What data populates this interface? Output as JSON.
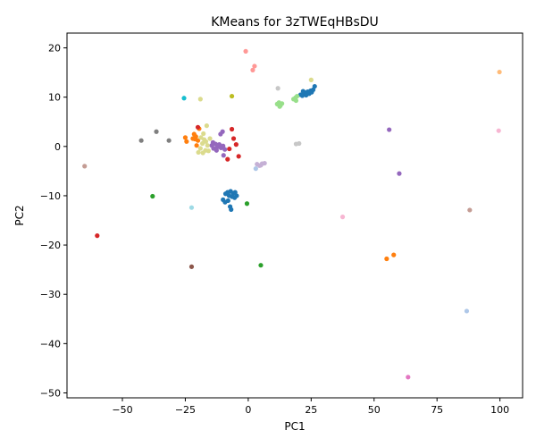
{
  "chart_data": {
    "type": "scatter",
    "title": "KMeans for 3zTWEqHBsDU",
    "xlabel": "PC1",
    "ylabel": "PC2",
    "xlim": [
      -72,
      109
    ],
    "ylim": [
      -51,
      23
    ],
    "xticks": [
      -50,
      -25,
      0,
      25,
      50,
      75,
      100
    ],
    "yticks": [
      -50,
      -40,
      -30,
      -20,
      -10,
      0,
      10,
      20
    ],
    "grid": false,
    "legend": "none",
    "points": [
      {
        "x": 21.5,
        "y": 10.3,
        "color": "#1f77b4"
      },
      {
        "x": 22.0,
        "y": 10.6,
        "color": "#1f77b4"
      },
      {
        "x": 22.6,
        "y": 10.9,
        "color": "#1f77b4"
      },
      {
        "x": 23.0,
        "y": 10.4,
        "color": "#1f77b4"
      },
      {
        "x": 23.6,
        "y": 11.1,
        "color": "#1f77b4"
      },
      {
        "x": 24.2,
        "y": 10.7,
        "color": "#1f77b4"
      },
      {
        "x": 24.8,
        "y": 11.3,
        "color": "#1f77b4"
      },
      {
        "x": 25.2,
        "y": 11.0,
        "color": "#1f77b4"
      },
      {
        "x": 25.8,
        "y": 11.5,
        "color": "#1f77b4"
      },
      {
        "x": 26.4,
        "y": 12.2,
        "color": "#1f77b4"
      },
      {
        "x": 20.8,
        "y": 10.5,
        "color": "#1f77b4"
      },
      {
        "x": 21.8,
        "y": 11.2,
        "color": "#1f77b4"
      },
      {
        "x": -10.0,
        "y": -10.8,
        "color": "#1f77b4"
      },
      {
        "x": -9.2,
        "y": -11.3,
        "color": "#1f77b4"
      },
      {
        "x": -8.0,
        "y": -11.0,
        "color": "#1f77b4"
      },
      {
        "x": -7.2,
        "y": -12.2,
        "color": "#1f77b4"
      },
      {
        "x": -6.8,
        "y": -12.8,
        "color": "#1f77b4"
      },
      {
        "x": -9.0,
        "y": -9.6,
        "color": "#1f77b4"
      },
      {
        "x": -8.2,
        "y": -9.3,
        "color": "#1f77b4"
      },
      {
        "x": -7.0,
        "y": -9.1,
        "color": "#1f77b4"
      },
      {
        "x": -6.0,
        "y": -9.5,
        "color": "#1f77b4"
      },
      {
        "x": -5.2,
        "y": -9.3,
        "color": "#1f77b4"
      },
      {
        "x": -4.6,
        "y": -10.0,
        "color": "#1f77b4"
      },
      {
        "x": -5.4,
        "y": -10.4,
        "color": "#1f77b4"
      },
      {
        "x": -6.4,
        "y": -10.2,
        "color": "#1f77b4"
      },
      {
        "x": -7.6,
        "y": -10.0,
        "color": "#1f77b4"
      },
      {
        "x": 86.8,
        "y": -33.4,
        "color": "#aec7e8"
      },
      {
        "x": 3.0,
        "y": -4.5,
        "color": "#aec7e8"
      },
      {
        "x": -21.5,
        "y": 2.5,
        "color": "#ff7f0e"
      },
      {
        "x": -20.8,
        "y": 2.0,
        "color": "#ff7f0e"
      },
      {
        "x": -21.2,
        "y": 1.5,
        "color": "#ff7f0e"
      },
      {
        "x": -20.0,
        "y": 1.2,
        "color": "#ff7f0e"
      },
      {
        "x": -19.5,
        "y": 3.6,
        "color": "#ff7f0e"
      },
      {
        "x": -20.5,
        "y": 0.2,
        "color": "#ff7f0e"
      },
      {
        "x": -25.0,
        "y": 1.8,
        "color": "#ff7f0e"
      },
      {
        "x": -24.5,
        "y": 1.0,
        "color": "#ff7f0e"
      },
      {
        "x": -22.0,
        "y": 1.6,
        "color": "#ff7f0e"
      },
      {
        "x": 55.0,
        "y": -22.8,
        "color": "#ff7f0e"
      },
      {
        "x": 57.8,
        "y": -22.0,
        "color": "#ff7f0e"
      },
      {
        "x": 99.8,
        "y": 15.1,
        "color": "#ffbb78"
      },
      {
        "x": -38.0,
        "y": -10.1,
        "color": "#2ca02c"
      },
      {
        "x": -0.5,
        "y": -11.6,
        "color": "#2ca02c"
      },
      {
        "x": 5.0,
        "y": -24.1,
        "color": "#2ca02c"
      },
      {
        "x": 11.5,
        "y": 8.6,
        "color": "#98df8a"
      },
      {
        "x": 12.2,
        "y": 8.9,
        "color": "#98df8a"
      },
      {
        "x": 12.8,
        "y": 8.3,
        "color": "#98df8a"
      },
      {
        "x": 13.4,
        "y": 8.7,
        "color": "#98df8a"
      },
      {
        "x": 12.5,
        "y": 8.1,
        "color": "#98df8a"
      },
      {
        "x": 18.0,
        "y": 9.6,
        "color": "#98df8a"
      },
      {
        "x": 18.8,
        "y": 9.9,
        "color": "#98df8a"
      },
      {
        "x": 19.4,
        "y": 10.2,
        "color": "#98df8a"
      },
      {
        "x": 19.0,
        "y": 9.3,
        "color": "#98df8a"
      },
      {
        "x": -60.0,
        "y": -18.1,
        "color": "#d62728"
      },
      {
        "x": -6.5,
        "y": 3.5,
        "color": "#d62728"
      },
      {
        "x": -5.8,
        "y": 1.6,
        "color": "#d62728"
      },
      {
        "x": -4.8,
        "y": 0.4,
        "color": "#d62728"
      },
      {
        "x": -7.5,
        "y": -0.5,
        "color": "#d62728"
      },
      {
        "x": -8.2,
        "y": -2.6,
        "color": "#d62728"
      },
      {
        "x": -3.8,
        "y": -2.0,
        "color": "#d62728"
      },
      {
        "x": -20.0,
        "y": 3.9,
        "color": "#d62728"
      },
      {
        "x": -1.0,
        "y": 19.3,
        "color": "#ff9896"
      },
      {
        "x": 2.5,
        "y": 16.3,
        "color": "#ff9896"
      },
      {
        "x": 1.8,
        "y": 15.5,
        "color": "#ff9896"
      },
      {
        "x": 56.0,
        "y": 3.4,
        "color": "#9467bd"
      },
      {
        "x": 60.0,
        "y": -5.5,
        "color": "#9467bd"
      },
      {
        "x": -11.0,
        "y": 2.5,
        "color": "#9467bd"
      },
      {
        "x": -10.2,
        "y": 3.0,
        "color": "#9467bd"
      },
      {
        "x": -14.5,
        "y": 0.2,
        "color": "#9467bd"
      },
      {
        "x": -13.8,
        "y": -0.4,
        "color": "#9467bd"
      },
      {
        "x": -13.0,
        "y": 0.5,
        "color": "#9467bd"
      },
      {
        "x": -12.2,
        "y": -0.1,
        "color": "#9467bd"
      },
      {
        "x": -11.5,
        "y": 0.4,
        "color": "#9467bd"
      },
      {
        "x": -10.8,
        "y": -0.3,
        "color": "#9467bd"
      },
      {
        "x": -10.0,
        "y": 0.1,
        "color": "#9467bd"
      },
      {
        "x": -9.3,
        "y": -0.6,
        "color": "#9467bd"
      },
      {
        "x": -12.6,
        "y": -0.8,
        "color": "#9467bd"
      },
      {
        "x": -9.8,
        "y": -1.8,
        "color": "#9467bd"
      },
      {
        "x": -14.0,
        "y": 0.8,
        "color": "#9467bd"
      },
      {
        "x": 3.5,
        "y": -3.6,
        "color": "#c5b0d5"
      },
      {
        "x": 4.5,
        "y": -3.9,
        "color": "#c5b0d5"
      },
      {
        "x": 5.5,
        "y": -3.5,
        "color": "#c5b0d5"
      },
      {
        "x": 6.5,
        "y": -3.4,
        "color": "#c5b0d5"
      },
      {
        "x": 5.0,
        "y": -3.8,
        "color": "#c5b0d5"
      },
      {
        "x": -22.5,
        "y": -24.4,
        "color": "#8c564b"
      },
      {
        "x": -65.0,
        "y": -4.0,
        "color": "#c49c94"
      },
      {
        "x": 88.0,
        "y": -12.9,
        "color": "#c49c94"
      },
      {
        "x": 63.5,
        "y": -46.8,
        "color": "#e377c2"
      },
      {
        "x": 37.5,
        "y": -14.3,
        "color": "#f7b6d2"
      },
      {
        "x": 99.5,
        "y": 3.2,
        "color": "#f7b6d2"
      },
      {
        "x": -42.5,
        "y": 1.2,
        "color": "#7f7f7f"
      },
      {
        "x": -36.5,
        "y": 3.0,
        "color": "#7f7f7f"
      },
      {
        "x": -31.5,
        "y": 1.2,
        "color": "#7f7f7f"
      },
      {
        "x": 11.8,
        "y": 11.8,
        "color": "#c7c7c7"
      },
      {
        "x": 19.0,
        "y": 0.5,
        "color": "#c7c7c7"
      },
      {
        "x": 20.2,
        "y": 0.6,
        "color": "#c7c7c7"
      },
      {
        "x": -6.5,
        "y": 10.2,
        "color": "#bcbd22"
      },
      {
        "x": -19.0,
        "y": 9.6,
        "color": "#dbdb8d"
      },
      {
        "x": 25.0,
        "y": 13.5,
        "color": "#dbdb8d"
      },
      {
        "x": -16.5,
        "y": 4.2,
        "color": "#dbdb8d"
      },
      {
        "x": -19.8,
        "y": -1.2,
        "color": "#dbdb8d"
      },
      {
        "x": -19.0,
        "y": -0.4,
        "color": "#dbdb8d"
      },
      {
        "x": -18.2,
        "y": 0.6,
        "color": "#dbdb8d"
      },
      {
        "x": -17.5,
        "y": 1.4,
        "color": "#dbdb8d"
      },
      {
        "x": -18.8,
        "y": 1.8,
        "color": "#dbdb8d"
      },
      {
        "x": -17.0,
        "y": -0.8,
        "color": "#dbdb8d"
      },
      {
        "x": -16.2,
        "y": 0.2,
        "color": "#dbdb8d"
      },
      {
        "x": -15.8,
        "y": -0.9,
        "color": "#dbdb8d"
      },
      {
        "x": -18.0,
        "y": -1.3,
        "color": "#dbdb8d"
      },
      {
        "x": -17.8,
        "y": 2.6,
        "color": "#dbdb8d"
      },
      {
        "x": -16.8,
        "y": 1.0,
        "color": "#dbdb8d"
      },
      {
        "x": -15.2,
        "y": 1.6,
        "color": "#dbdb8d"
      },
      {
        "x": -25.5,
        "y": 9.8,
        "color": "#17becf"
      },
      {
        "x": -22.5,
        "y": -12.4,
        "color": "#9edae5"
      }
    ]
  }
}
